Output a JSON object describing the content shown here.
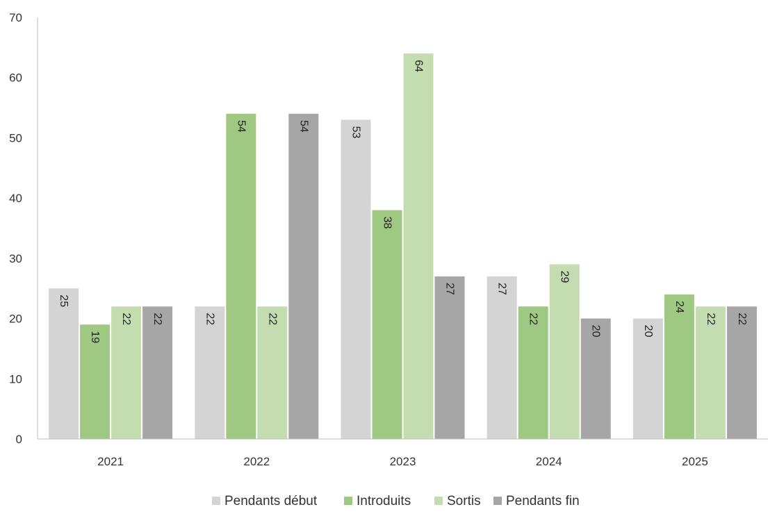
{
  "chart_data": {
    "type": "bar",
    "title": "",
    "xlabel": "",
    "ylabel": "",
    "ylim": [
      0,
      70
    ],
    "yticks": [
      0,
      10,
      20,
      30,
      40,
      50,
      60,
      70
    ],
    "grid": false,
    "legend_position": "bottom-center",
    "categories": [
      "2021",
      "2022",
      "2023",
      "2024",
      "2025"
    ],
    "series": [
      {
        "name": "Pendants début",
        "color": "#d4d4d4",
        "values": [
          25,
          22,
          53,
          27,
          20
        ]
      },
      {
        "name": "Introduits",
        "color": "#9fc883",
        "values": [
          19,
          54,
          38,
          22,
          24
        ]
      },
      {
        "name": "Sortis",
        "color": "#c3dcb0",
        "values": [
          22,
          22,
          64,
          29,
          22
        ]
      },
      {
        "name": "Pendants fin",
        "color": "#a6a6a6",
        "values": [
          22,
          54,
          27,
          20,
          22
        ]
      }
    ]
  }
}
